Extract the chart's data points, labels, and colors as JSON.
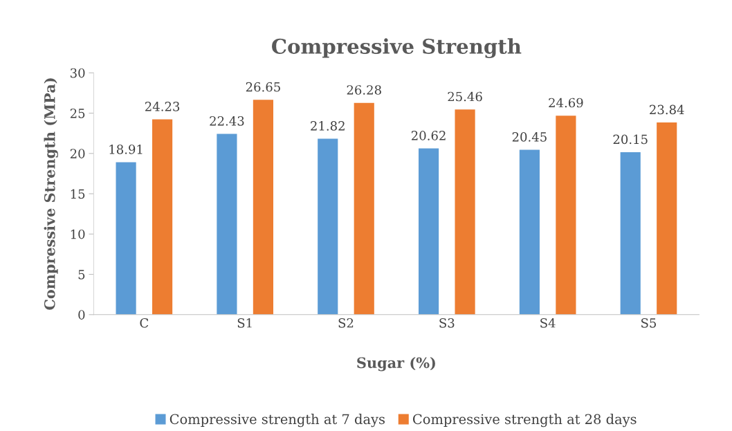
{
  "chart_data": {
    "type": "bar",
    "title": "Compressive Strength",
    "xlabel": "Sugar (%)",
    "ylabel": "Compressive Strength (MPa)",
    "categories": [
      "C",
      "S1",
      "S2",
      "S3",
      "S4",
      "S5"
    ],
    "series": [
      {
        "name": "Compressive strength at 7 days",
        "color": "#5b9bd5",
        "values": [
          18.91,
          22.43,
          21.82,
          20.62,
          20.45,
          20.15
        ]
      },
      {
        "name": "Compressive strength at 28 days",
        "color": "#ed7d31",
        "values": [
          24.23,
          26.65,
          26.28,
          25.46,
          24.69,
          23.84
        ]
      }
    ],
    "ylim": [
      0,
      30
    ],
    "yticks": [
      0,
      5,
      10,
      15,
      20,
      25,
      30
    ],
    "grid": false,
    "legend": "bottom",
    "data_labels": true
  }
}
